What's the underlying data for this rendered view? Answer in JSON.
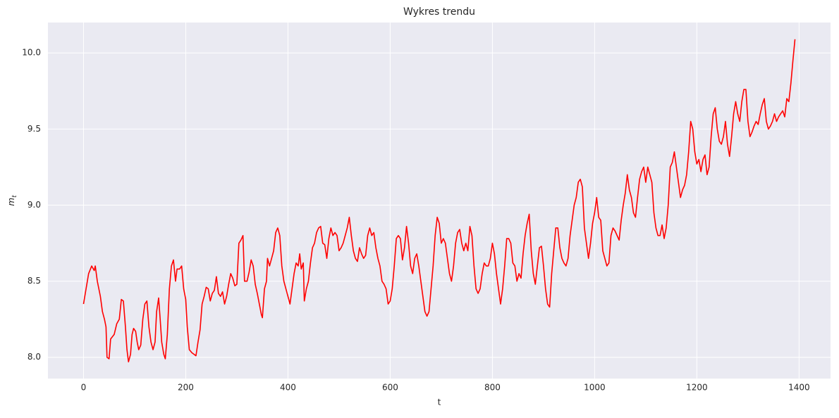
{
  "chart_data": {
    "type": "line",
    "title": "Wykres trendu",
    "xlabel": "t",
    "ylabel": "m_t",
    "xlim": [
      -69.6,
      1461.6
    ],
    "ylim": [
      7.86,
      10.2
    ],
    "xticks": [
      0,
      200,
      400,
      600,
      800,
      1000,
      1200,
      1400
    ],
    "yticks": [
      {
        "value": 8,
        "label": "8.0"
      },
      8.5,
      {
        "value": 9,
        "label": "9.0"
      },
      9.5,
      {
        "value": 10,
        "label": "10.0"
      }
    ],
    "grid": true,
    "series": [
      {
        "color": "#ff0000",
        "x": [
          0,
          10,
          16,
          21,
          23,
          27,
          33,
          37,
          41,
          44,
          46,
          50,
          53,
          60,
          65,
          70,
          74,
          78,
          82,
          85,
          88,
          92,
          95,
          98,
          102,
          105,
          108,
          112,
          116,
          120,
          124,
          128,
          132,
          136,
          140,
          143,
          147,
          150,
          153,
          157,
          160,
          164,
          168,
          172,
          176,
          180,
          183,
          188,
          192,
          196,
          200,
          203,
          207,
          212,
          216,
          220,
          224,
          228,
          232,
          236,
          240,
          244,
          248,
          252,
          256,
          260,
          264,
          268,
          272,
          276,
          280,
          284,
          288,
          292,
          296,
          300,
          304,
          308,
          312,
          315,
          320,
          324,
          328,
          332,
          336,
          340,
          344,
          348,
          350,
          354,
          358,
          360,
          364,
          368,
          372,
          376,
          380,
          384,
          388,
          392,
          396,
          400,
          404,
          408,
          412,
          416,
          420,
          423,
          426,
          430,
          432,
          436,
          440,
          444,
          448,
          452,
          456,
          460,
          464,
          468,
          472,
          476,
          480,
          484,
          488,
          492,
          496,
          500,
          504,
          508,
          512,
          516,
          520,
          524,
          528,
          532,
          536,
          540,
          544,
          548,
          552,
          556,
          560,
          564,
          568,
          572,
          576,
          580,
          584,
          588,
          592,
          596,
          600,
          604,
          608,
          612,
          616,
          620,
          624,
          628,
          632,
          636,
          640,
          644,
          648,
          652,
          656,
          660,
          664,
          668,
          672,
          676,
          680,
          684,
          688,
          692,
          696,
          700,
          704,
          708,
          712,
          716,
          720,
          724,
          728,
          732,
          736,
          740,
          744,
          748,
          752,
          756,
          760,
          764,
          768,
          772,
          776,
          780,
          784,
          788,
          792,
          796,
          800,
          804,
          808,
          812,
          816,
          820,
          824,
          828,
          832,
          836,
          840,
          844,
          848,
          852,
          856,
          860,
          864,
          868,
          872,
          876,
          880,
          884,
          888,
          892,
          896,
          900,
          904,
          908,
          912,
          916,
          920,
          924,
          928,
          932,
          936,
          940,
          944,
          948,
          952,
          956,
          960,
          964,
          968,
          972,
          976,
          980,
          984,
          988,
          992,
          996,
          1000,
          1004,
          1008,
          1012,
          1016,
          1020,
          1024,
          1028,
          1032,
          1036,
          1040,
          1044,
          1048,
          1052,
          1056,
          1060,
          1064,
          1068,
          1072,
          1076,
          1080,
          1084,
          1088,
          1092,
          1096,
          1100,
          1104,
          1108,
          1112,
          1116,
          1120,
          1124,
          1128,
          1132,
          1136,
          1140,
          1144,
          1148,
          1152,
          1156,
          1160,
          1164,
          1168,
          1172,
          1176,
          1180,
          1184,
          1188,
          1192,
          1196,
          1200,
          1204,
          1208,
          1212,
          1216,
          1220,
          1224,
          1228,
          1232,
          1236,
          1240,
          1244,
          1248,
          1252,
          1256,
          1260,
          1264,
          1268,
          1272,
          1276,
          1280,
          1284,
          1288,
          1292,
          1296,
          1300,
          1304,
          1308,
          1312,
          1316,
          1320,
          1324,
          1328,
          1332,
          1336,
          1340,
          1344,
          1348,
          1352,
          1356,
          1360,
          1364,
          1368,
          1372,
          1376,
          1380,
          1384,
          1388,
          1392
        ],
        "values": [
          8.35,
          8.55,
          8.6,
          8.57,
          8.6,
          8.5,
          8.4,
          8.3,
          8.25,
          8.2,
          8.0,
          7.99,
          8.12,
          8.15,
          8.22,
          8.25,
          8.38,
          8.37,
          8.2,
          8.05,
          7.97,
          8.02,
          8.15,
          8.19,
          8.17,
          8.1,
          8.05,
          8.08,
          8.25,
          8.35,
          8.37,
          8.2,
          8.1,
          8.05,
          8.1,
          8.3,
          8.39,
          8.25,
          8.1,
          8.02,
          7.99,
          8.15,
          8.45,
          8.6,
          8.64,
          8.5,
          8.58,
          8.58,
          8.6,
          8.45,
          8.38,
          8.2,
          8.05,
          8.03,
          8.02,
          8.01,
          8.1,
          8.18,
          8.35,
          8.4,
          8.46,
          8.45,
          8.37,
          8.42,
          8.44,
          8.53,
          8.42,
          8.4,
          8.43,
          8.35,
          8.4,
          8.48,
          8.55,
          8.52,
          8.47,
          8.48,
          8.75,
          8.77,
          8.8,
          8.5,
          8.5,
          8.56,
          8.64,
          8.6,
          8.48,
          8.42,
          8.35,
          8.28,
          8.26,
          8.45,
          8.5,
          8.65,
          8.6,
          8.65,
          8.7,
          8.82,
          8.85,
          8.8,
          8.6,
          8.5,
          8.45,
          8.4,
          8.35,
          8.45,
          8.55,
          8.62,
          8.6,
          8.68,
          8.58,
          8.62,
          8.37,
          8.45,
          8.5,
          8.62,
          8.72,
          8.75,
          8.82,
          8.85,
          8.86,
          8.75,
          8.74,
          8.65,
          8.78,
          8.85,
          8.8,
          8.82,
          8.8,
          8.7,
          8.72,
          8.75,
          8.8,
          8.85,
          8.92,
          8.8,
          8.7,
          8.65,
          8.63,
          8.72,
          8.68,
          8.65,
          8.67,
          8.8,
          8.85,
          8.8,
          8.82,
          8.72,
          8.65,
          8.6,
          8.5,
          8.48,
          8.45,
          8.35,
          8.37,
          8.45,
          8.6,
          8.78,
          8.8,
          8.78,
          8.64,
          8.72,
          8.86,
          8.75,
          8.6,
          8.55,
          8.65,
          8.68,
          8.6,
          8.5,
          8.4,
          8.3,
          8.27,
          8.3,
          8.45,
          8.6,
          8.8,
          8.92,
          8.88,
          8.75,
          8.78,
          8.75,
          8.65,
          8.55,
          8.5,
          8.6,
          8.75,
          8.82,
          8.84,
          8.75,
          8.7,
          8.75,
          8.7,
          8.86,
          8.8,
          8.6,
          8.45,
          8.42,
          8.45,
          8.55,
          8.62,
          8.6,
          8.6,
          8.65,
          8.75,
          8.68,
          8.55,
          8.45,
          8.35,
          8.45,
          8.6,
          8.78,
          8.78,
          8.75,
          8.62,
          8.6,
          8.5,
          8.55,
          8.52,
          8.68,
          8.8,
          8.88,
          8.94,
          8.7,
          8.55,
          8.48,
          8.6,
          8.72,
          8.73,
          8.6,
          8.45,
          8.35,
          8.33,
          8.55,
          8.7,
          8.85,
          8.85,
          8.72,
          8.65,
          8.62,
          8.6,
          8.65,
          8.8,
          8.9,
          9.0,
          9.05,
          9.15,
          9.17,
          9.12,
          8.85,
          8.75,
          8.65,
          8.75,
          8.88,
          8.95,
          9.05,
          8.92,
          8.9,
          8.7,
          8.65,
          8.6,
          8.62,
          8.8,
          8.85,
          8.83,
          8.8,
          8.77,
          8.9,
          9.0,
          9.08,
          9.2,
          9.1,
          9.05,
          8.95,
          8.92,
          9.05,
          9.17,
          9.22,
          9.25,
          9.15,
          9.25,
          9.2,
          9.15,
          8.95,
          8.85,
          8.8,
          8.8,
          8.87,
          8.78,
          8.85,
          9.0,
          9.25,
          9.28,
          9.35,
          9.25,
          9.15,
          9.05,
          9.1,
          9.13,
          9.2,
          9.35,
          9.55,
          9.5,
          9.35,
          9.27,
          9.3,
          9.22,
          9.3,
          9.33,
          9.2,
          9.25,
          9.45,
          9.6,
          9.64,
          9.5,
          9.42,
          9.4,
          9.45,
          9.55,
          9.4,
          9.32,
          9.45,
          9.6,
          9.68,
          9.6,
          9.55,
          9.68,
          9.76,
          9.76,
          9.55,
          9.45,
          9.48,
          9.52,
          9.55,
          9.53,
          9.6,
          9.66,
          9.7,
          9.55,
          9.5,
          9.52,
          9.55,
          9.6,
          9.55,
          9.58,
          9.6,
          9.62,
          9.58,
          9.7,
          9.68,
          9.8,
          9.95,
          10.09
        ]
      }
    ]
  }
}
